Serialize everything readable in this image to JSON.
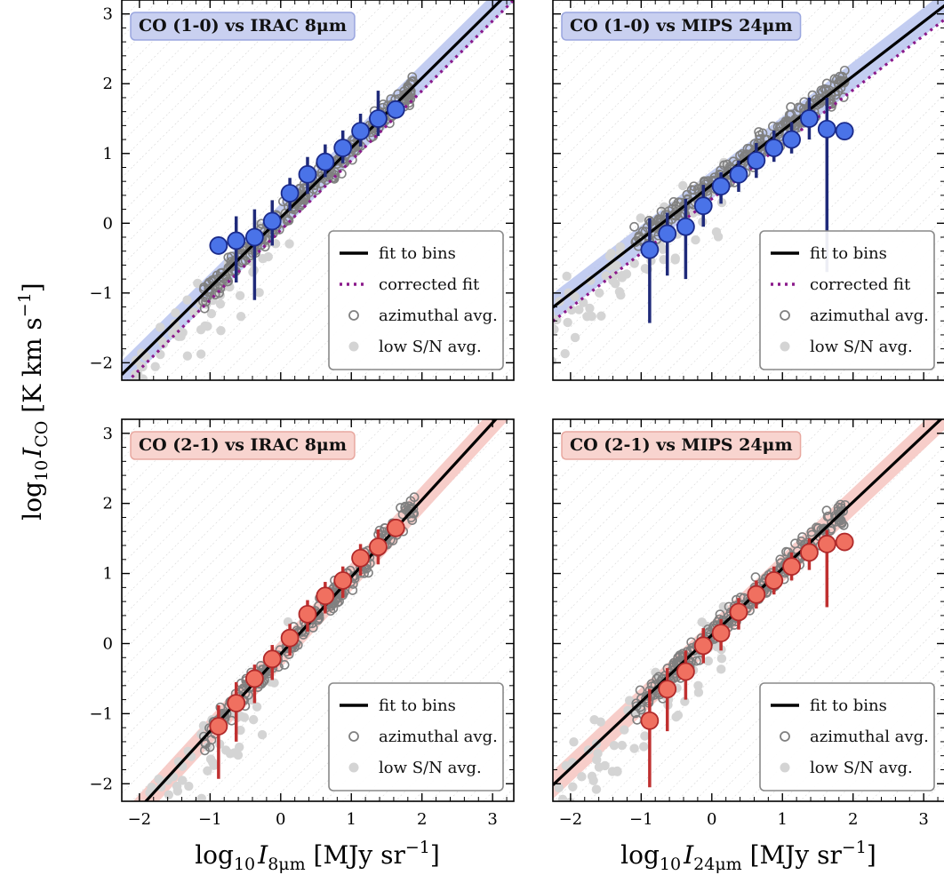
{
  "chart_data": [
    {
      "type": "scatter",
      "title": "CO (1-0) vs IRAC 8μm",
      "theme": "blue",
      "xlim": [
        -2.25,
        3.3
      ],
      "ylim": [
        -2.25,
        3.2
      ],
      "xticks": [
        "−2",
        "−1",
        "0",
        "1",
        "2",
        "3"
      ],
      "yticks": [
        "−2",
        "−1",
        "0",
        "1",
        "2",
        "3"
      ],
      "fit": {
        "slope": 1.0,
        "intercept": 0.08,
        "band": 0.2
      },
      "corrected_fit": {
        "slope": 1.0,
        "intercept": -0.1
      },
      "series": [
        {
          "name": "fit to bins"
        },
        {
          "name": "corrected fit"
        },
        {
          "name": "azimuthal avg."
        },
        {
          "name": "low S/N avg."
        }
      ],
      "bins": {
        "x": [
          -0.88,
          -0.63,
          -0.37,
          -0.12,
          0.13,
          0.38,
          0.63,
          0.88,
          1.13,
          1.38,
          1.63
        ],
        "y": [
          -0.32,
          -0.25,
          -0.2,
          0.03,
          0.43,
          0.7,
          0.88,
          1.08,
          1.32,
          1.5,
          1.63
        ],
        "err_low": [
          0.0,
          0.6,
          0.9,
          0.35,
          0.25,
          0.28,
          0.22,
          0.22,
          0.22,
          0.25,
          0.0
        ],
        "err_high": [
          0.0,
          0.35,
          0.4,
          0.3,
          0.22,
          0.25,
          0.25,
          0.25,
          0.25,
          0.4,
          0.0
        ]
      }
    },
    {
      "type": "scatter",
      "title": "CO (1-0) vs MIPS 24μm",
      "theme": "blue",
      "xlim": [
        -2.25,
        3.3
      ],
      "ylim": [
        -2.25,
        3.2
      ],
      "xticks": [
        "−2",
        "−1",
        "0",
        "1",
        "2",
        "3"
      ],
      "yticks": [
        "−2",
        "−1",
        "0",
        "1",
        "2",
        "3"
      ],
      "fit": {
        "slope": 0.78,
        "intercept": 0.55,
        "band": 0.2
      },
      "corrected_fit": {
        "slope": 0.78,
        "intercept": 0.35
      },
      "series": [
        {
          "name": "fit to bins"
        },
        {
          "name": "corrected fit"
        },
        {
          "name": "azimuthal avg."
        },
        {
          "name": "low S/N avg."
        }
      ],
      "bins": {
        "x": [
          -0.88,
          -0.63,
          -0.37,
          -0.12,
          0.13,
          0.38,
          0.63,
          0.88,
          1.13,
          1.38,
          1.63,
          1.88
        ],
        "y": [
          -0.38,
          -0.15,
          -0.05,
          0.25,
          0.53,
          0.7,
          0.9,
          1.08,
          1.2,
          1.5,
          1.35,
          1.32
        ],
        "err_low": [
          1.05,
          0.6,
          0.75,
          0.3,
          0.25,
          0.25,
          0.25,
          0.2,
          0.2,
          0.3,
          2.05,
          0.0
        ],
        "err_high": [
          0.45,
          0.3,
          0.4,
          0.3,
          0.2,
          0.2,
          0.25,
          0.25,
          0.25,
          0.3,
          0.45,
          0.0
        ]
      }
    },
    {
      "type": "scatter",
      "title": "CO (2-1) vs IRAC 8μm",
      "theme": "red",
      "xlim": [
        -2.25,
        3.3
      ],
      "ylim": [
        -2.25,
        3.2
      ],
      "xticks": [
        "−2",
        "−1",
        "0",
        "1",
        "2",
        "3"
      ],
      "yticks": [
        "−2",
        "−1",
        "0",
        "1",
        "2",
        "3"
      ],
      "xlabel": "log10 I8μm [MJy sr−1]",
      "fit": {
        "slope": 1.1,
        "intercept": -0.15,
        "band": 0.2
      },
      "series": [
        {
          "name": "fit to bins"
        },
        {
          "name": "azimuthal avg."
        },
        {
          "name": "low S/N avg."
        }
      ],
      "bins": {
        "x": [
          -0.88,
          -0.63,
          -0.37,
          -0.12,
          0.13,
          0.38,
          0.63,
          0.88,
          1.13,
          1.38,
          1.63
        ],
        "y": [
          -1.18,
          -0.85,
          -0.5,
          -0.22,
          0.08,
          0.42,
          0.68,
          0.9,
          1.22,
          1.38,
          1.65
        ],
        "err_low": [
          0.75,
          0.55,
          0.35,
          0.3,
          0.25,
          0.25,
          0.25,
          0.25,
          0.25,
          0.25,
          0.0
        ],
        "err_high": [
          0.3,
          0.3,
          0.2,
          0.2,
          0.2,
          0.2,
          0.2,
          0.2,
          0.2,
          0.25,
          0.0
        ]
      }
    },
    {
      "type": "scatter",
      "title": "CO (2-1) vs MIPS 24μm",
      "theme": "red",
      "xlim": [
        -2.25,
        3.3
      ],
      "ylim": [
        -2.25,
        3.2
      ],
      "xticks": [
        "−2",
        "−1",
        "0",
        "1",
        "2",
        "3"
      ],
      "yticks": [
        "−2",
        "−1",
        "0",
        "1",
        "2",
        "3"
      ],
      "xlabel": "log10 I24μm [MJy sr−1]",
      "fit": {
        "slope": 0.95,
        "intercept": 0.12,
        "band": 0.2
      },
      "series": [
        {
          "name": "fit to bins"
        },
        {
          "name": "azimuthal avg."
        },
        {
          "name": "low S/N avg."
        }
      ],
      "bins": {
        "x": [
          -0.88,
          -0.63,
          -0.37,
          -0.12,
          0.13,
          0.38,
          0.63,
          0.88,
          1.13,
          1.38,
          1.63,
          1.88
        ],
        "y": [
          -1.1,
          -0.65,
          -0.4,
          -0.03,
          0.15,
          0.45,
          0.7,
          0.9,
          1.1,
          1.3,
          1.42,
          1.45
        ],
        "err_low": [
          0.95,
          0.6,
          0.4,
          0.25,
          0.25,
          0.25,
          0.2,
          0.2,
          0.2,
          0.25,
          0.9,
          0.0
        ],
        "err_high": [
          0.45,
          0.3,
          0.3,
          0.25,
          0.2,
          0.2,
          0.2,
          0.2,
          0.2,
          0.2,
          0.2,
          0.0
        ]
      }
    }
  ],
  "ylabel": {
    "base": "log",
    "sub": "10",
    "var": "I",
    "varsub": "CO",
    "unit": " [K km s",
    "exp": "−1",
    "close": "]"
  },
  "xlabel_left": {
    "base": "log",
    "sub": "10",
    "var": "I",
    "varsub": "8μm",
    "unit": " [MJy sr",
    "exp": "−1",
    "close": "]"
  },
  "xlabel_right": {
    "base": "log",
    "sub": "10",
    "var": "I",
    "varsub": "24μm",
    "unit": " [MJy sr",
    "exp": "−1",
    "close": "]"
  },
  "colors": {
    "blue_marker": "#4a73e8",
    "blue_edge": "#1a2a8a",
    "blue_err": "#1f2a7a",
    "blue_band": "#b9c4ee",
    "blue_title_bg": "#c9d0f0",
    "red_marker": "#f07060",
    "red_edge": "#b02a2a",
    "red_err": "#c03030",
    "red_band": "#f6c4c0",
    "red_title_bg": "#f8d4cf",
    "corrected": "#8b1a8b",
    "open_marker": "#808080",
    "lowsn": "#d4d4d4",
    "fit": "#000000"
  }
}
